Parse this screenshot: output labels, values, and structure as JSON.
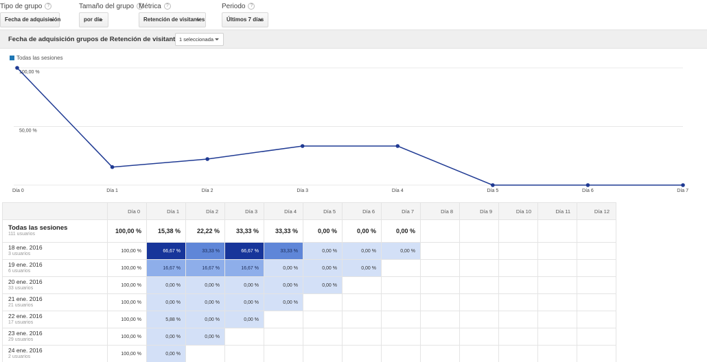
{
  "filters": [
    {
      "label": "Tipo de grupo",
      "value": "Fecha de adquisición",
      "left": 0,
      "width": 87
    },
    {
      "label": "Tamaño del grupo",
      "value": "por día",
      "left": 115,
      "width": 43
    },
    {
      "label": "Métrica",
      "value": "Retención de visitantes",
      "left": 202,
      "width": 98
    },
    {
      "label": "Periodo",
      "value": "Últimos 7 días",
      "left": 323,
      "width": 68
    }
  ],
  "help_glyph": "?",
  "panel": {
    "title": "Fecha de adquisición grupos de Retención de visitantes",
    "series_selector": "1 seleccionada"
  },
  "chart_data": {
    "type": "line",
    "legend": "Todas las sesiones",
    "categories": [
      "Día 0",
      "Día 1",
      "Día 2",
      "Día 3",
      "Día 4",
      "Día 5",
      "Día 6",
      "Día 7"
    ],
    "series": [
      {
        "name": "Todas las sesiones",
        "values": [
          100,
          15.38,
          22.22,
          33.33,
          33.33,
          0,
          0,
          0
        ]
      }
    ],
    "y_ticks": [
      "100,00 %",
      "50,00 %"
    ],
    "ylim": [
      0,
      100
    ],
    "color": "#1f3a93"
  },
  "table": {
    "columns": [
      "Día 0",
      "Día 1",
      "Día 2",
      "Día 3",
      "Día 4",
      "Día 5",
      "Día 6",
      "Día 7",
      "Día 8",
      "Día 9",
      "Día 10",
      "Día 11",
      "Día 12"
    ],
    "total": {
      "label": "Todas las sesiones",
      "sub": "111 usuarios",
      "cells": [
        "100,00 %",
        "15,38 %",
        "22,22 %",
        "33,33 %",
        "33,33 %",
        "0,00 %",
        "0,00 %",
        "0,00 %"
      ]
    },
    "rows": [
      {
        "label": "18 ene. 2016",
        "sub": "3 usuarios",
        "cells": [
          "100,00 %",
          "66,67 %",
          "33,33 %",
          "66,67 %",
          "33,33 %",
          "0,00 %",
          "0,00 %",
          "0,00 %"
        ]
      },
      {
        "label": "19 ene. 2016",
        "sub": "6 usuarios",
        "cells": [
          "100,00 %",
          "16,67 %",
          "16,67 %",
          "16,67 %",
          "0,00 %",
          "0,00 %",
          "0,00 %"
        ]
      },
      {
        "label": "20 ene. 2016",
        "sub": "33 usuarios",
        "cells": [
          "100,00 %",
          "0,00 %",
          "0,00 %",
          "0,00 %",
          "0,00 %",
          "0,00 %"
        ]
      },
      {
        "label": "21 ene. 2016",
        "sub": "21 usuarios",
        "cells": [
          "100,00 %",
          "0,00 %",
          "0,00 %",
          "0,00 %",
          "0,00 %"
        ]
      },
      {
        "label": "22 ene. 2016",
        "sub": "17 usuarios",
        "cells": [
          "100,00 %",
          "5,88 %",
          "0,00 %",
          "0,00 %"
        ]
      },
      {
        "label": "23 ene. 2016",
        "sub": "29 usuarios",
        "cells": [
          "100,00 %",
          "0,00 %",
          "0,00 %"
        ]
      },
      {
        "label": "24 ene. 2016",
        "sub": "2 usuarios",
        "cells": [
          "100,00 %",
          "0,00 %"
        ]
      }
    ]
  }
}
